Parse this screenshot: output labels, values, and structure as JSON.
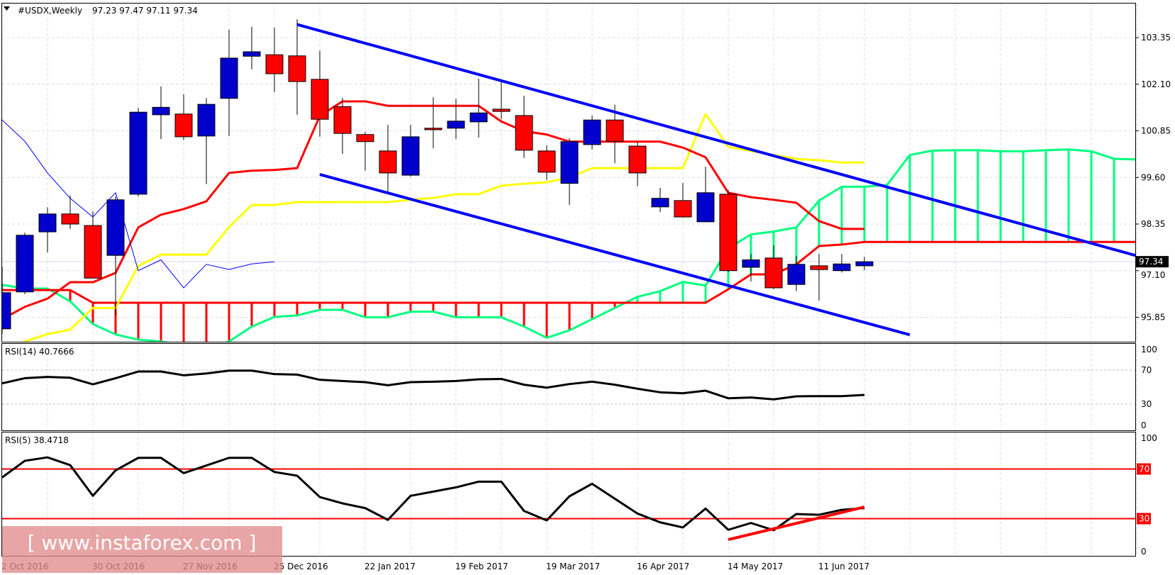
{
  "header": {
    "symbol_label": "#USDX,Weekly",
    "ohlc_label": "97.23 97.47 97.11 97.34",
    "menu_icon": "triangle-down-icon"
  },
  "watermark": {
    "text": "[ www.instaforex.com ]"
  },
  "colors": {
    "bull_candle": "#0000cc",
    "bear_candle": "#ff0000",
    "tenkan": "#ff0000",
    "kijun": "#ffff00",
    "chikou": "#0000ff",
    "senkou_a": "#00ff7f",
    "senkou_b": "#ff0000",
    "trendline": "#0000ff",
    "rsi": "#000000",
    "rsi_levels": "#ff0000",
    "rsi_trendline": "#ff0000",
    "grid": "#dcdce8",
    "price_tag_bg": "#000000"
  },
  "chart_data": [
    {
      "type": "candlestick",
      "title": "#USDX,Weekly",
      "ylim": [
        95.3,
        104.4
      ],
      "y_ticks": [
        "103.35",
        "102.10",
        "100.85",
        "99.60",
        "98.35",
        "97.10",
        "95.85"
      ],
      "current_price": "97.34",
      "grid": true,
      "x_tick_labels": [
        "2 Oct 2016",
        "30 Oct 2016",
        "27 Nov 2016",
        "25 Dec 2016",
        "22 Jan 2017",
        "19 Feb 2017",
        "19 Mar 2017",
        "16 Apr 2017",
        "14 May 2017",
        "11 Jun 2017"
      ],
      "dates": [
        "2016-10-02",
        "2016-10-09",
        "2016-10-16",
        "2016-10-23",
        "2016-10-30",
        "2016-11-06",
        "2016-11-13",
        "2016-11-20",
        "2016-11-27",
        "2016-12-04",
        "2016-12-11",
        "2016-12-18",
        "2016-12-25",
        "2017-01-01",
        "2017-01-08",
        "2017-01-15",
        "2017-01-22",
        "2017-01-29",
        "2017-02-05",
        "2017-02-12",
        "2017-02-19",
        "2017-02-26",
        "2017-03-05",
        "2017-03-12",
        "2017-03-19",
        "2017-03-26",
        "2017-04-02",
        "2017-04-09",
        "2017-04-16",
        "2017-04-23",
        "2017-04-30",
        "2017-05-07",
        "2017-05-14",
        "2017-05-21",
        "2017-05-28",
        "2017-06-04",
        "2017-06-11",
        "2017-06-18",
        "2017-06-25"
      ],
      "future_dates": [
        "2017-07-02",
        "2017-07-09",
        "2017-07-16",
        "2017-07-23",
        "2017-07-30",
        "2017-08-06",
        "2017-08-13",
        "2017-08-20",
        "2017-08-27",
        "2017-09-03",
        "2017-09-10",
        "2017-09-17"
      ],
      "ohlc": [
        [
          95.54,
          97.2,
          95.4,
          96.51
        ],
        [
          96.53,
          98.12,
          96.47,
          98.05
        ],
        [
          98.14,
          98.8,
          97.59,
          98.62
        ],
        [
          98.62,
          99.11,
          98.22,
          98.35
        ],
        [
          98.31,
          98.69,
          96.89,
          96.9
        ],
        [
          97.51,
          99.09,
          95.9,
          99.0
        ],
        [
          99.15,
          101.47,
          99.09,
          101.35
        ],
        [
          101.28,
          102.04,
          100.63,
          101.48
        ],
        [
          101.3,
          101.83,
          100.6,
          100.69
        ],
        [
          100.71,
          101.73,
          99.42,
          101.56
        ],
        [
          101.72,
          103.56,
          100.71,
          102.8
        ],
        [
          102.85,
          103.64,
          102.5,
          102.97
        ],
        [
          102.89,
          103.62,
          101.89,
          102.38
        ],
        [
          102.86,
          103.84,
          101.28,
          102.17
        ],
        [
          102.23,
          103.0,
          100.69,
          101.16
        ],
        [
          101.5,
          101.73,
          100.23,
          100.78
        ],
        [
          100.75,
          100.82,
          99.78,
          100.56
        ],
        [
          100.31,
          101.01,
          99.2,
          99.72
        ],
        [
          99.66,
          101.01,
          99.62,
          100.69
        ],
        [
          100.92,
          101.75,
          100.38,
          100.88
        ],
        [
          100.92,
          101.71,
          100.63,
          101.11
        ],
        [
          101.09,
          102.25,
          100.67,
          101.33
        ],
        [
          101.43,
          102.23,
          101.16,
          101.37
        ],
        [
          101.26,
          101.79,
          100.12,
          100.33
        ],
        [
          100.31,
          100.46,
          99.53,
          99.74
        ],
        [
          99.44,
          100.65,
          98.86,
          100.56
        ],
        [
          100.48,
          101.26,
          100.35,
          101.14
        ],
        [
          101.14,
          101.55,
          99.98,
          100.57
        ],
        [
          100.44,
          100.56,
          99.36,
          99.72
        ],
        [
          98.81,
          99.32,
          98.67,
          99.04
        ],
        [
          98.98,
          99.45,
          98.52,
          98.54
        ],
        [
          98.41,
          99.89,
          98.41,
          99.19
        ],
        [
          99.15,
          99.26,
          97.06,
          97.1
        ],
        [
          97.19,
          97.55,
          96.81,
          97.39
        ],
        [
          97.44,
          97.78,
          96.6,
          96.64
        ],
        [
          96.73,
          97.5,
          96.55,
          97.27
        ],
        [
          97.23,
          97.55,
          96.3,
          97.13
        ],
        [
          97.1,
          97.55,
          97.05,
          97.28
        ],
        [
          97.23,
          97.47,
          97.11,
          97.34
        ]
      ],
      "ichimoku": {
        "tenkan": [
          95.8,
          96.13,
          96.35,
          96.79,
          96.79,
          97.04,
          98.26,
          98.6,
          98.75,
          98.96,
          99.72,
          99.78,
          99.8,
          99.85,
          101.25,
          101.64,
          101.64,
          101.52,
          101.52,
          101.52,
          101.52,
          101.52,
          101.1,
          100.84,
          100.75,
          100.56,
          100.56,
          100.56,
          100.56,
          100.56,
          100.4,
          100.14,
          99.19,
          99.07,
          99.0,
          98.92,
          98.43,
          98.22,
          98.22
        ],
        "kijun": [
          94.9,
          95.2,
          95.4,
          95.52,
          96.1,
          96.1,
          97.23,
          97.53,
          97.53,
          97.53,
          98.27,
          98.86,
          98.86,
          98.94,
          98.94,
          98.94,
          98.94,
          98.94,
          99.0,
          99.05,
          99.15,
          99.15,
          99.38,
          99.43,
          99.47,
          99.6,
          99.85,
          99.85,
          99.85,
          99.85,
          99.85,
          101.3,
          100.42,
          100.31,
          100.2,
          100.1,
          100.06,
          100.0,
          100.0
        ],
        "chikou": [
          101.14,
          100.57,
          99.72,
          99.04,
          98.54,
          99.19,
          97.1,
          97.39,
          96.64,
          97.27,
          97.13,
          97.28,
          97.34
        ],
        "senkou_a": [
          96.72,
          96.62,
          96.62,
          96.28,
          95.67,
          95.39,
          95.25,
          95.2,
          95.1,
          95.0,
          95.2,
          95.6,
          95.86,
          95.9,
          96.05,
          96.05,
          95.85,
          95.85,
          96.0,
          96.0,
          95.85,
          95.85,
          95.85,
          95.6,
          95.3,
          95.5,
          95.8,
          96.1,
          96.4,
          96.55,
          96.8,
          96.7,
          97.7,
          98.07,
          98.15,
          98.26,
          98.98,
          99.35,
          99.35,
          99.4,
          100.2,
          100.32,
          100.33,
          100.33,
          100.3,
          100.3,
          100.33,
          100.35,
          100.3,
          100.1,
          100.08
        ],
        "senkou_b": [
          96.58,
          96.58,
          96.58,
          96.58,
          96.24,
          96.24,
          96.24,
          96.24,
          96.24,
          96.24,
          96.24,
          96.24,
          96.24,
          96.24,
          96.24,
          96.24,
          96.24,
          96.24,
          96.24,
          96.24,
          96.24,
          96.24,
          96.24,
          96.24,
          96.24,
          96.24,
          96.24,
          96.24,
          96.24,
          96.24,
          96.24,
          96.24,
          96.6,
          97.0,
          97.0,
          97.27,
          97.76,
          97.8,
          97.87,
          97.87,
          97.87,
          97.87,
          97.87,
          97.87,
          97.87,
          97.87,
          97.87,
          97.87,
          97.87,
          97.87,
          97.87
        ]
      },
      "trendlines": [
        {
          "from": {
            "date": "2017-01-01",
            "price": 103.7
          },
          "to": {
            "date": "2017-09-17",
            "price": 97.5
          }
        },
        {
          "from": {
            "date": "2017-01-08",
            "price": 99.68
          },
          "to": {
            "date": "2017-07-09",
            "price": 95.38
          }
        }
      ]
    },
    {
      "type": "line",
      "title": "RSI(14) 40.7666",
      "ylim": [
        0,
        100
      ],
      "y_ticks": [
        "100",
        "70",
        "30",
        "0"
      ],
      "levels": [
        70,
        30
      ],
      "values": [
        54.4,
        60.5,
        62,
        61,
        53.3,
        60.5,
        68.3,
        68.3,
        63.9,
        66,
        69.4,
        69.4,
        65.3,
        64.7,
        58.6,
        57.2,
        55.8,
        52.2,
        55.8,
        56.4,
        57.2,
        59.2,
        59.6,
        52.8,
        49.4,
        53.6,
        56.4,
        52.8,
        48.1,
        43.9,
        42.8,
        45.8,
        36.9,
        37.8,
        35.6,
        39.2,
        39.4,
        39.4,
        40.8
      ]
    },
    {
      "type": "line",
      "title": "RSI(5) 38.4718",
      "ylim": [
        0,
        100
      ],
      "y_ticks": [
        "100",
        "70",
        "30",
        "0"
      ],
      "levels": [
        70,
        30
      ],
      "level_labels": [
        "70",
        "30"
      ],
      "values": [
        63.2,
        76.6,
        79.4,
        73.1,
        48.4,
        68.9,
        79,
        79,
        66.7,
        72.8,
        79,
        79,
        67.6,
        64.6,
        47.4,
        42.3,
        38.5,
        29,
        48.4,
        51.8,
        55.2,
        59.8,
        59.8,
        36.2,
        28.6,
        48,
        58.1,
        46.1,
        34.1,
        27,
        22.9,
        38.1,
        21,
        26.5,
        20.7,
        33.7,
        33.1,
        37.1,
        38.5
      ],
      "trendline": {
        "from": {
          "date": "2017-05-14",
          "value": 13.1
        },
        "to": {
          "date": "2017-06-25",
          "value": 39.4
        }
      }
    }
  ]
}
